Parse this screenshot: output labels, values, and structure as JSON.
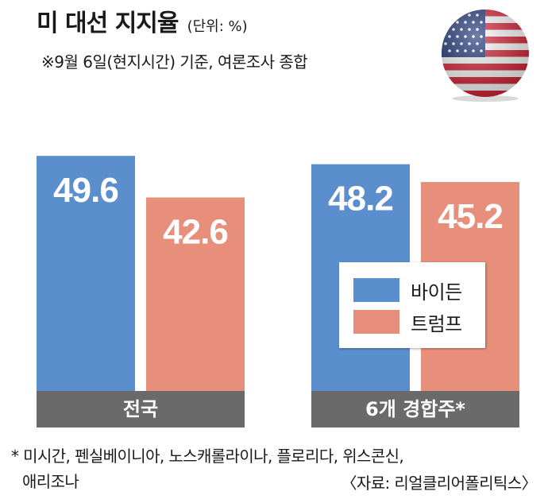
{
  "title": "미 대선 지지율",
  "unit": "(단위: %)",
  "subtitle": "※9월 6일(현지시간) 기준, 여론조사 종합",
  "colors": {
    "biden": "#5b8ecd",
    "trump": "#e88f7c",
    "category_bar": "#6a6a6a",
    "flag_red": "#d6283a",
    "flag_blue": "#223a7a"
  },
  "chart_data": {
    "type": "bar",
    "categories": [
      "전국",
      "6개 경합주*"
    ],
    "series": [
      {
        "name": "바이든",
        "values": [
          49.6,
          48.2
        ]
      },
      {
        "name": "트럼프",
        "values": [
          42.6,
          45.2
        ]
      }
    ],
    "data_labels": true,
    "legend_position": "right"
  },
  "footnote": {
    "lines": [
      "* 미시간, 펜실베이니아, 노스캐롤라이나, 플로리다, 위스콘신,",
      "애리조나"
    ]
  },
  "source": "〈자료: 리얼클리어폴리틱스〉",
  "flag_icon": "us-flag-icon"
}
